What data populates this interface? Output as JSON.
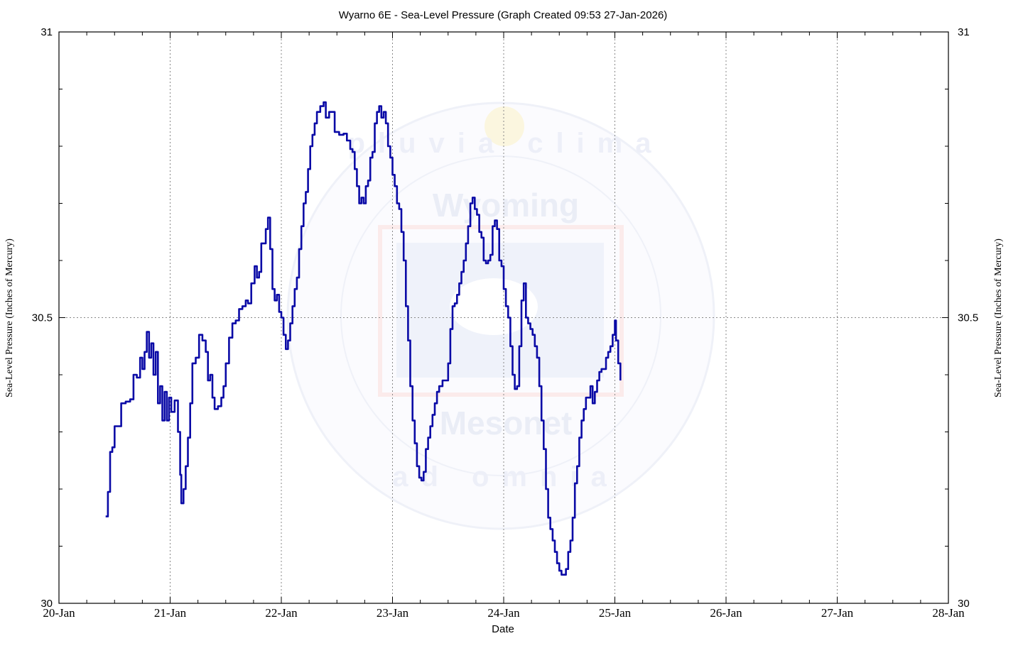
{
  "chart_data": {
    "type": "line",
    "title": "Wyarno 6E - Sea-Level Pressure (Graph Created 09:53 27-Jan-2026)",
    "xlabel": "Date",
    "ylabel_left": "Sea-Level Pressure (Inches of Mercury)",
    "ylabel_right": "Sea-Level Pressure (Inches of Mercury)",
    "x_ticks": [
      "20-Jan",
      "21-Jan",
      "22-Jan",
      "23-Jan",
      "24-Jan",
      "25-Jan",
      "26-Jan",
      "27-Jan",
      "28-Jan"
    ],
    "y_ticks": [
      "30",
      "30.5",
      "31"
    ],
    "xlim_days": [
      0,
      8
    ],
    "ylim": [
      30,
      31
    ],
    "grid": true,
    "line_color": "#0a0aa6",
    "watermark": {
      "top_word": "Wyoming",
      "bottom_word": "Mesonet",
      "motto_top": "pluvia clima",
      "motto_bottom": "ad omnia"
    },
    "series": [
      {
        "points": [
          [
            0.42,
            30.152
          ],
          [
            0.44,
            30.195
          ],
          [
            0.46,
            30.265
          ],
          [
            0.48,
            30.273
          ],
          [
            0.5,
            30.31
          ],
          [
            0.53,
            30.31
          ],
          [
            0.56,
            30.35
          ],
          [
            0.6,
            30.353
          ],
          [
            0.64,
            30.357
          ],
          [
            0.67,
            30.4
          ],
          [
            0.7,
            30.395
          ],
          [
            0.73,
            30.43
          ],
          [
            0.75,
            30.41
          ],
          [
            0.77,
            30.44
          ],
          [
            0.79,
            30.475
          ],
          [
            0.81,
            30.43
          ],
          [
            0.83,
            30.455
          ],
          [
            0.85,
            30.4
          ],
          [
            0.87,
            30.44
          ],
          [
            0.89,
            30.35
          ],
          [
            0.91,
            30.38
          ],
          [
            0.93,
            30.32
          ],
          [
            0.95,
            30.37
          ],
          [
            0.97,
            30.32
          ],
          [
            0.99,
            30.36
          ],
          [
            1.01,
            30.335
          ],
          [
            1.04,
            30.355
          ],
          [
            1.07,
            30.3
          ],
          [
            1.09,
            30.225
          ],
          [
            1.1,
            30.175
          ],
          [
            1.12,
            30.2
          ],
          [
            1.14,
            30.24
          ],
          [
            1.16,
            30.29
          ],
          [
            1.18,
            30.35
          ],
          [
            1.2,
            30.42
          ],
          [
            1.23,
            30.43
          ],
          [
            1.26,
            30.47
          ],
          [
            1.29,
            30.46
          ],
          [
            1.32,
            30.44
          ],
          [
            1.34,
            30.39
          ],
          [
            1.36,
            30.4
          ],
          [
            1.38,
            30.36
          ],
          [
            1.4,
            30.34
          ],
          [
            1.43,
            30.345
          ],
          [
            1.46,
            30.36
          ],
          [
            1.48,
            30.38
          ],
          [
            1.5,
            30.42
          ],
          [
            1.53,
            30.465
          ],
          [
            1.56,
            30.49
          ],
          [
            1.59,
            30.495
          ],
          [
            1.62,
            30.515
          ],
          [
            1.65,
            30.52
          ],
          [
            1.68,
            30.53
          ],
          [
            1.7,
            30.525
          ],
          [
            1.73,
            30.56
          ],
          [
            1.76,
            30.59
          ],
          [
            1.78,
            30.57
          ],
          [
            1.8,
            30.58
          ],
          [
            1.82,
            30.63
          ],
          [
            1.84,
            30.63
          ],
          [
            1.86,
            30.655
          ],
          [
            1.88,
            30.675
          ],
          [
            1.9,
            30.62
          ],
          [
            1.92,
            30.55
          ],
          [
            1.94,
            30.53
          ],
          [
            1.96,
            30.54
          ],
          [
            1.98,
            30.51
          ],
          [
            2.0,
            30.5
          ],
          [
            2.02,
            30.47
          ],
          [
            2.04,
            30.445
          ],
          [
            2.06,
            30.46
          ],
          [
            2.08,
            30.49
          ],
          [
            2.1,
            30.52
          ],
          [
            2.12,
            30.55
          ],
          [
            2.14,
            30.57
          ],
          [
            2.16,
            30.62
          ],
          [
            2.18,
            30.66
          ],
          [
            2.2,
            30.7
          ],
          [
            2.22,
            30.72
          ],
          [
            2.24,
            30.76
          ],
          [
            2.26,
            30.8
          ],
          [
            2.28,
            30.82
          ],
          [
            2.3,
            30.84
          ],
          [
            2.32,
            30.86
          ],
          [
            2.35,
            30.87
          ],
          [
            2.38,
            30.877
          ],
          [
            2.4,
            30.85
          ],
          [
            2.43,
            30.86
          ],
          [
            2.46,
            30.86
          ],
          [
            2.48,
            30.825
          ],
          [
            2.52,
            30.82
          ],
          [
            2.56,
            30.822
          ],
          [
            2.59,
            30.81
          ],
          [
            2.62,
            30.795
          ],
          [
            2.64,
            30.79
          ],
          [
            2.66,
            30.76
          ],
          [
            2.68,
            30.73
          ],
          [
            2.7,
            30.7
          ],
          [
            2.72,
            30.71
          ],
          [
            2.74,
            30.7
          ],
          [
            2.76,
            30.73
          ],
          [
            2.78,
            30.74
          ],
          [
            2.8,
            30.78
          ],
          [
            2.82,
            30.79
          ],
          [
            2.84,
            30.84
          ],
          [
            2.86,
            30.86
          ],
          [
            2.88,
            30.87
          ],
          [
            2.9,
            30.85
          ],
          [
            2.92,
            30.86
          ],
          [
            2.94,
            30.84
          ],
          [
            2.96,
            30.8
          ],
          [
            2.98,
            30.78
          ],
          [
            3.0,
            30.75
          ],
          [
            3.02,
            30.73
          ],
          [
            3.04,
            30.7
          ],
          [
            3.06,
            30.69
          ],
          [
            3.08,
            30.65
          ],
          [
            3.1,
            30.6
          ],
          [
            3.12,
            30.52
          ],
          [
            3.14,
            30.46
          ],
          [
            3.16,
            30.38
          ],
          [
            3.18,
            30.32
          ],
          [
            3.2,
            30.28
          ],
          [
            3.22,
            30.24
          ],
          [
            3.24,
            30.22
          ],
          [
            3.26,
            30.215
          ],
          [
            3.28,
            30.23
          ],
          [
            3.3,
            30.27
          ],
          [
            3.32,
            30.29
          ],
          [
            3.34,
            30.31
          ],
          [
            3.36,
            30.33
          ],
          [
            3.38,
            30.35
          ],
          [
            3.4,
            30.37
          ],
          [
            3.42,
            30.38
          ],
          [
            3.45,
            30.39
          ],
          [
            3.48,
            30.39
          ],
          [
            3.5,
            30.42
          ],
          [
            3.52,
            30.48
          ],
          [
            3.54,
            30.52
          ],
          [
            3.56,
            30.525
          ],
          [
            3.58,
            30.54
          ],
          [
            3.6,
            30.56
          ],
          [
            3.62,
            30.58
          ],
          [
            3.64,
            30.6
          ],
          [
            3.66,
            30.63
          ],
          [
            3.68,
            30.66
          ],
          [
            3.7,
            30.7
          ],
          [
            3.72,
            30.71
          ],
          [
            3.74,
            30.69
          ],
          [
            3.76,
            30.68
          ],
          [
            3.78,
            30.65
          ],
          [
            3.8,
            30.64
          ],
          [
            3.82,
            30.6
          ],
          [
            3.84,
            30.595
          ],
          [
            3.86,
            30.6
          ],
          [
            3.88,
            30.61
          ],
          [
            3.9,
            30.66
          ],
          [
            3.92,
            30.67
          ],
          [
            3.94,
            30.655
          ],
          [
            3.96,
            30.6
          ],
          [
            3.98,
            30.59
          ],
          [
            4.0,
            30.55
          ],
          [
            4.02,
            30.52
          ],
          [
            4.04,
            30.5
          ],
          [
            4.06,
            30.45
          ],
          [
            4.08,
            30.4
          ],
          [
            4.1,
            30.375
          ],
          [
            4.12,
            30.38
          ],
          [
            4.14,
            30.45
          ],
          [
            4.16,
            30.53
          ],
          [
            4.18,
            30.56
          ],
          [
            4.2,
            30.5
          ],
          [
            4.22,
            30.49
          ],
          [
            4.24,
            30.48
          ],
          [
            4.26,
            30.47
          ],
          [
            4.28,
            30.45
          ],
          [
            4.3,
            30.43
          ],
          [
            4.32,
            30.38
          ],
          [
            4.34,
            30.32
          ],
          [
            4.36,
            30.27
          ],
          [
            4.38,
            30.2
          ],
          [
            4.4,
            30.15
          ],
          [
            4.42,
            30.13
          ],
          [
            4.44,
            30.11
          ],
          [
            4.46,
            30.09
          ],
          [
            4.48,
            30.07
          ],
          [
            4.5,
            30.057
          ],
          [
            4.52,
            30.05
          ],
          [
            4.54,
            30.05
          ],
          [
            4.56,
            30.06
          ],
          [
            4.58,
            30.09
          ],
          [
            4.6,
            30.11
          ],
          [
            4.62,
            30.15
          ],
          [
            4.64,
            30.21
          ],
          [
            4.66,
            30.24
          ],
          [
            4.68,
            30.29
          ],
          [
            4.7,
            30.32
          ],
          [
            4.72,
            30.34
          ],
          [
            4.74,
            30.36
          ],
          [
            4.76,
            30.36
          ],
          [
            4.78,
            30.38
          ],
          [
            4.8,
            30.35
          ],
          [
            4.82,
            30.37
          ],
          [
            4.84,
            30.39
          ],
          [
            4.86,
            30.405
          ],
          [
            4.88,
            30.41
          ],
          [
            4.9,
            30.41
          ],
          [
            4.92,
            30.43
          ],
          [
            4.94,
            30.44
          ],
          [
            4.96,
            30.45
          ],
          [
            4.98,
            30.47
          ],
          [
            5.0,
            30.495
          ],
          [
            5.01,
            30.46
          ],
          [
            5.03,
            30.42
          ],
          [
            5.05,
            30.39
          ]
        ]
      }
    ]
  }
}
